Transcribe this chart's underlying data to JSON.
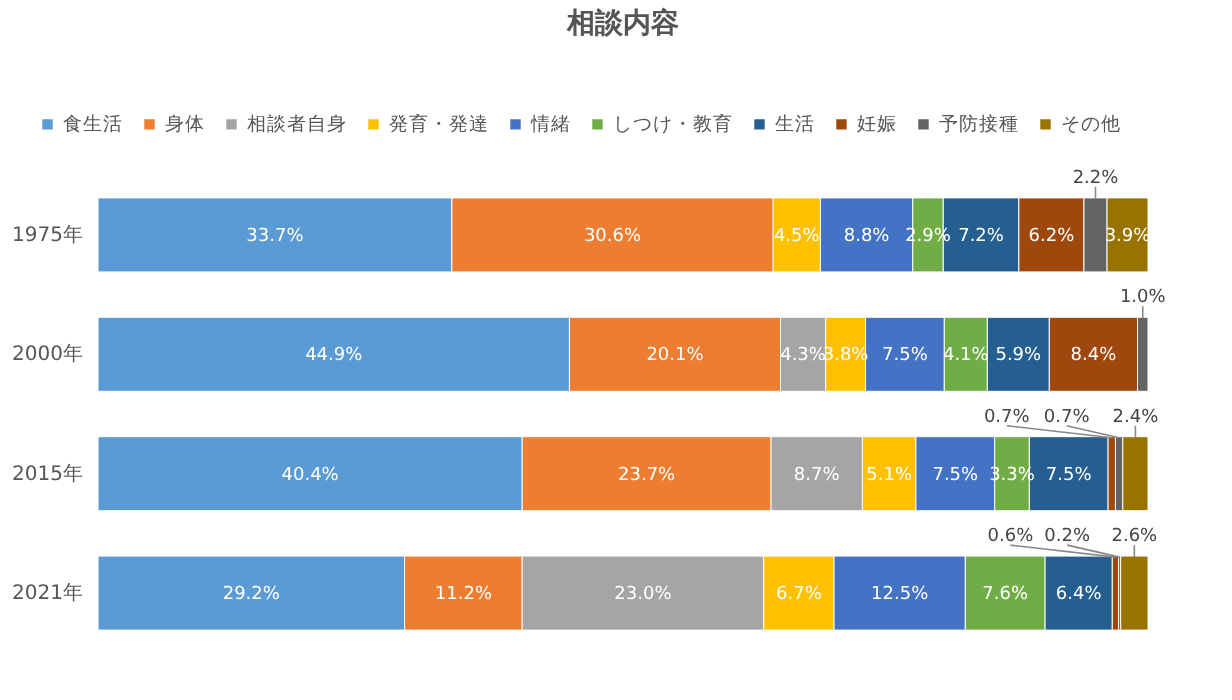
{
  "chart_data": {
    "type": "bar",
    "orientation": "horizontal",
    "stacked": true,
    "title": "相談内容",
    "categories": [
      "1975年",
      "2000年",
      "2015年",
      "2021年"
    ],
    "xlim": [
      0,
      100
    ],
    "tick_labels": "y",
    "legend": "top",
    "series": [
      {
        "name": "食生活",
        "color": "#5b9bd5",
        "values": [
          33.7,
          44.9,
          40.4,
          29.2
        ],
        "value_labels": [
          "33.7%",
          "44.9%",
          "40.4%",
          "29.2%"
        ]
      },
      {
        "name": "身体",
        "color": "#ed7d31",
        "values": [
          30.6,
          20.1,
          23.7,
          11.2
        ],
        "value_labels": [
          "30.6%",
          "20.1%",
          "23.7%",
          "11.2%"
        ]
      },
      {
        "name": "相談者自身",
        "color": "#a5a5a5",
        "values": [
          null,
          4.3,
          8.7,
          23.0
        ],
        "value_labels": [
          null,
          "4.3%",
          "8.7%",
          "23.0%"
        ]
      },
      {
        "name": "発育・発達",
        "color": "#ffc000",
        "values": [
          4.5,
          3.8,
          5.1,
          6.7
        ],
        "value_labels": [
          "4.5%",
          "3.8%",
          "5.1%",
          "6.7%"
        ]
      },
      {
        "name": "情緒",
        "color": "#4472c4",
        "values": [
          8.8,
          7.5,
          7.5,
          12.5
        ],
        "value_labels": [
          "8.8%",
          "7.5%",
          "7.5%",
          "12.5%"
        ]
      },
      {
        "name": "しつけ・教育",
        "color": "#70ad47",
        "values": [
          2.9,
          4.1,
          3.3,
          7.6
        ],
        "value_labels": [
          "2.9%",
          "4.1%",
          "3.3%",
          "7.6%"
        ]
      },
      {
        "name": "生活",
        "color": "#255e91",
        "values": [
          7.2,
          5.9,
          7.5,
          6.4
        ],
        "value_labels": [
          "7.2%",
          "5.9%",
          "7.5%",
          "6.4%"
        ]
      },
      {
        "name": "妊娠",
        "color": "#9e480e",
        "values": [
          6.2,
          8.4,
          0.7,
          0.6
        ],
        "value_labels": [
          "6.2%",
          "8.4%",
          "0.7%",
          "0.6%"
        ]
      },
      {
        "name": "予防接種",
        "color": "#636363",
        "values": [
          2.2,
          1.0,
          0.7,
          0.2
        ],
        "value_labels": [
          "2.2%",
          "1.0%",
          "0.7%",
          "0.2%"
        ]
      },
      {
        "name": "その他",
        "color": "#997300",
        "values": [
          3.9,
          null,
          2.4,
          2.6
        ],
        "value_labels": [
          "3.9%",
          null,
          "2.4%",
          "2.6%"
        ]
      }
    ]
  }
}
